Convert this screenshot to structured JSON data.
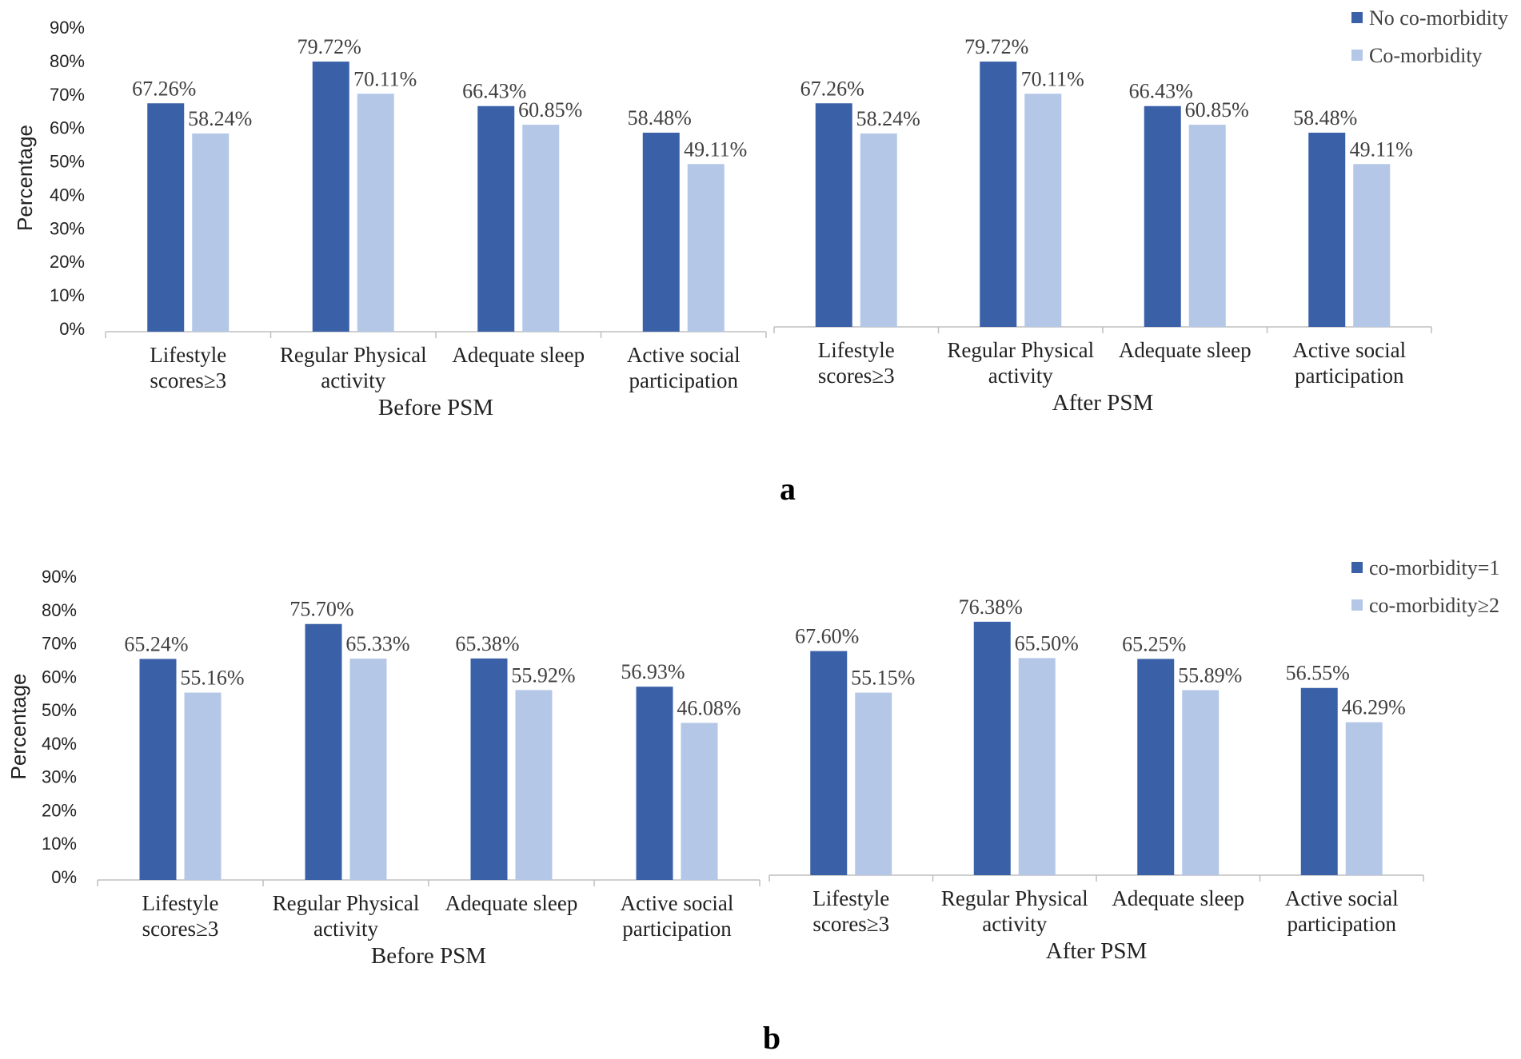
{
  "chart_data": [
    {
      "type": "bar",
      "panel_label": "a",
      "ylabel": "Percentage",
      "yticks": [
        "0%",
        "10%",
        "20%",
        "30%",
        "40%",
        "50%",
        "60%",
        "70%",
        "80%",
        "90%"
      ],
      "ylim": [
        0,
        90
      ],
      "legend_position": "top-right",
      "colors": [
        "#3a60a8",
        "#b4c7e7"
      ],
      "groups": [
        {
          "name": "Before PSM",
          "categories": [
            [
              "Lifestyle",
              "scores≥3"
            ],
            [
              "Regular Physical",
              "activity"
            ],
            [
              "Adequate sleep"
            ],
            [
              "Active social",
              "participation"
            ]
          ],
          "series": [
            {
              "name": "No co-morbidity",
              "values": [
                67.26,
                79.72,
                66.43,
                58.48
              ],
              "labels": [
                "67.26%",
                "79.72%",
                "66.43%",
                "58.48%"
              ]
            },
            {
              "name": "Co-morbidity",
              "values": [
                58.24,
                70.11,
                60.85,
                49.11
              ],
              "labels": [
                "58.24%",
                "70.11%",
                "60.85%",
                "49.11%"
              ]
            }
          ]
        },
        {
          "name": "After PSM",
          "categories": [
            [
              "Lifestyle",
              "scores≥3"
            ],
            [
              "Regular Physical",
              "activity"
            ],
            [
              "Adequate sleep"
            ],
            [
              "Active social",
              "participation"
            ]
          ],
          "series": [
            {
              "name": "No co-morbidity",
              "values": [
                67.26,
                79.72,
                66.43,
                58.48
              ],
              "labels": [
                "67.26%",
                "79.72%",
                "66.43%",
                "58.48%"
              ]
            },
            {
              "name": "Co-morbidity",
              "values": [
                58.24,
                70.11,
                60.85,
                49.11
              ],
              "labels": [
                "58.24%",
                "70.11%",
                "60.85%",
                "49.11%"
              ]
            }
          ]
        }
      ],
      "legend": [
        "No co-morbidity",
        "Co-morbidity"
      ]
    },
    {
      "type": "bar",
      "panel_label": "b",
      "ylabel": "Percentage",
      "yticks": [
        "0%",
        "10%",
        "20%",
        "30%",
        "40%",
        "50%",
        "60%",
        "70%",
        "80%",
        "90%"
      ],
      "ylim": [
        0,
        90
      ],
      "legend_position": "top-right",
      "colors": [
        "#3a60a8",
        "#b4c7e7"
      ],
      "groups": [
        {
          "name": "Before PSM",
          "categories": [
            [
              "Lifestyle",
              "scores≥3"
            ],
            [
              "Regular Physical",
              "activity"
            ],
            [
              "Adequate sleep"
            ],
            [
              "Active social",
              "participation"
            ]
          ],
          "series": [
            {
              "name": "co-morbidity=1",
              "values": [
                65.24,
                75.7,
                65.38,
                56.93
              ],
              "labels": [
                "65.24%",
                "75.70%",
                "65.38%",
                "56.93%"
              ]
            },
            {
              "name": "co-morbidity≥2",
              "values": [
                55.16,
                65.33,
                55.92,
                46.08
              ],
              "labels": [
                "55.16%",
                "65.33%",
                "55.92%",
                "46.08%"
              ]
            }
          ]
        },
        {
          "name": "After PSM",
          "categories": [
            [
              "Lifestyle",
              "scores≥3"
            ],
            [
              "Regular Physical",
              "activity"
            ],
            [
              "Adequate sleep"
            ],
            [
              "Active social",
              "participation"
            ]
          ],
          "series": [
            {
              "name": "co-morbidity=1",
              "values": [
                67.6,
                76.38,
                65.25,
                56.55
              ],
              "labels": [
                "67.60%",
                "76.38%",
                "65.25%",
                "56.55%"
              ]
            },
            {
              "name": "co-morbidity≥2",
              "values": [
                55.15,
                65.5,
                55.89,
                46.29
              ],
              "labels": [
                "55.15%",
                "65.50%",
                "55.89%",
                "46.29%"
              ]
            }
          ]
        }
      ],
      "legend": [
        "co-morbidity=1",
        "co-morbidity≥2"
      ]
    }
  ]
}
